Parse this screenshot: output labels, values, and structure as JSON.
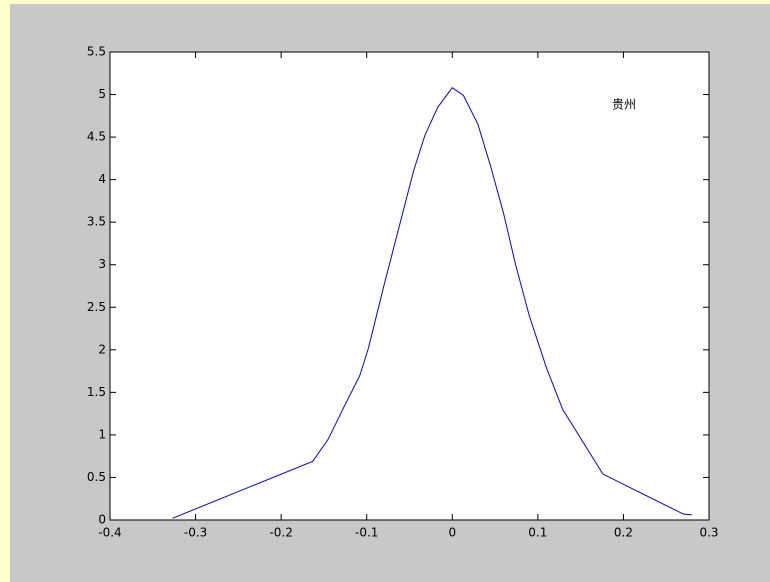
{
  "chart_data": {
    "type": "line",
    "annotation": "贵州",
    "series": [
      {
        "color": "#0000ff",
        "x": [
          -0.327,
          -0.163,
          -0.145,
          -0.127,
          -0.108,
          -0.098,
          -0.08,
          -0.062,
          -0.045,
          -0.032,
          -0.017,
          0,
          0.013,
          0.03,
          0.045,
          0.06,
          0.074,
          0.09,
          0.11,
          0.129,
          0.176,
          0.27,
          0.28
        ],
        "values": [
          0.02,
          0.69,
          0.95,
          1.32,
          1.7,
          2.02,
          2.75,
          3.45,
          4.11,
          4.52,
          4.85,
          5.08,
          4.99,
          4.65,
          4.15,
          3.6,
          3.0,
          2.4,
          1.79,
          1.3,
          0.54,
          0.07,
          0.06
        ]
      }
    ],
    "xlim": [
      -0.4,
      0.3
    ],
    "xticks": [
      -0.4,
      -0.3,
      -0.2,
      -0.1,
      0,
      0.1,
      0.2,
      0.3
    ],
    "ylim": [
      0,
      5.5
    ],
    "yticks": [
      0,
      0.5,
      1,
      1.5,
      2,
      2.5,
      3,
      3.5,
      4,
      4.5,
      5,
      5.5
    ]
  }
}
